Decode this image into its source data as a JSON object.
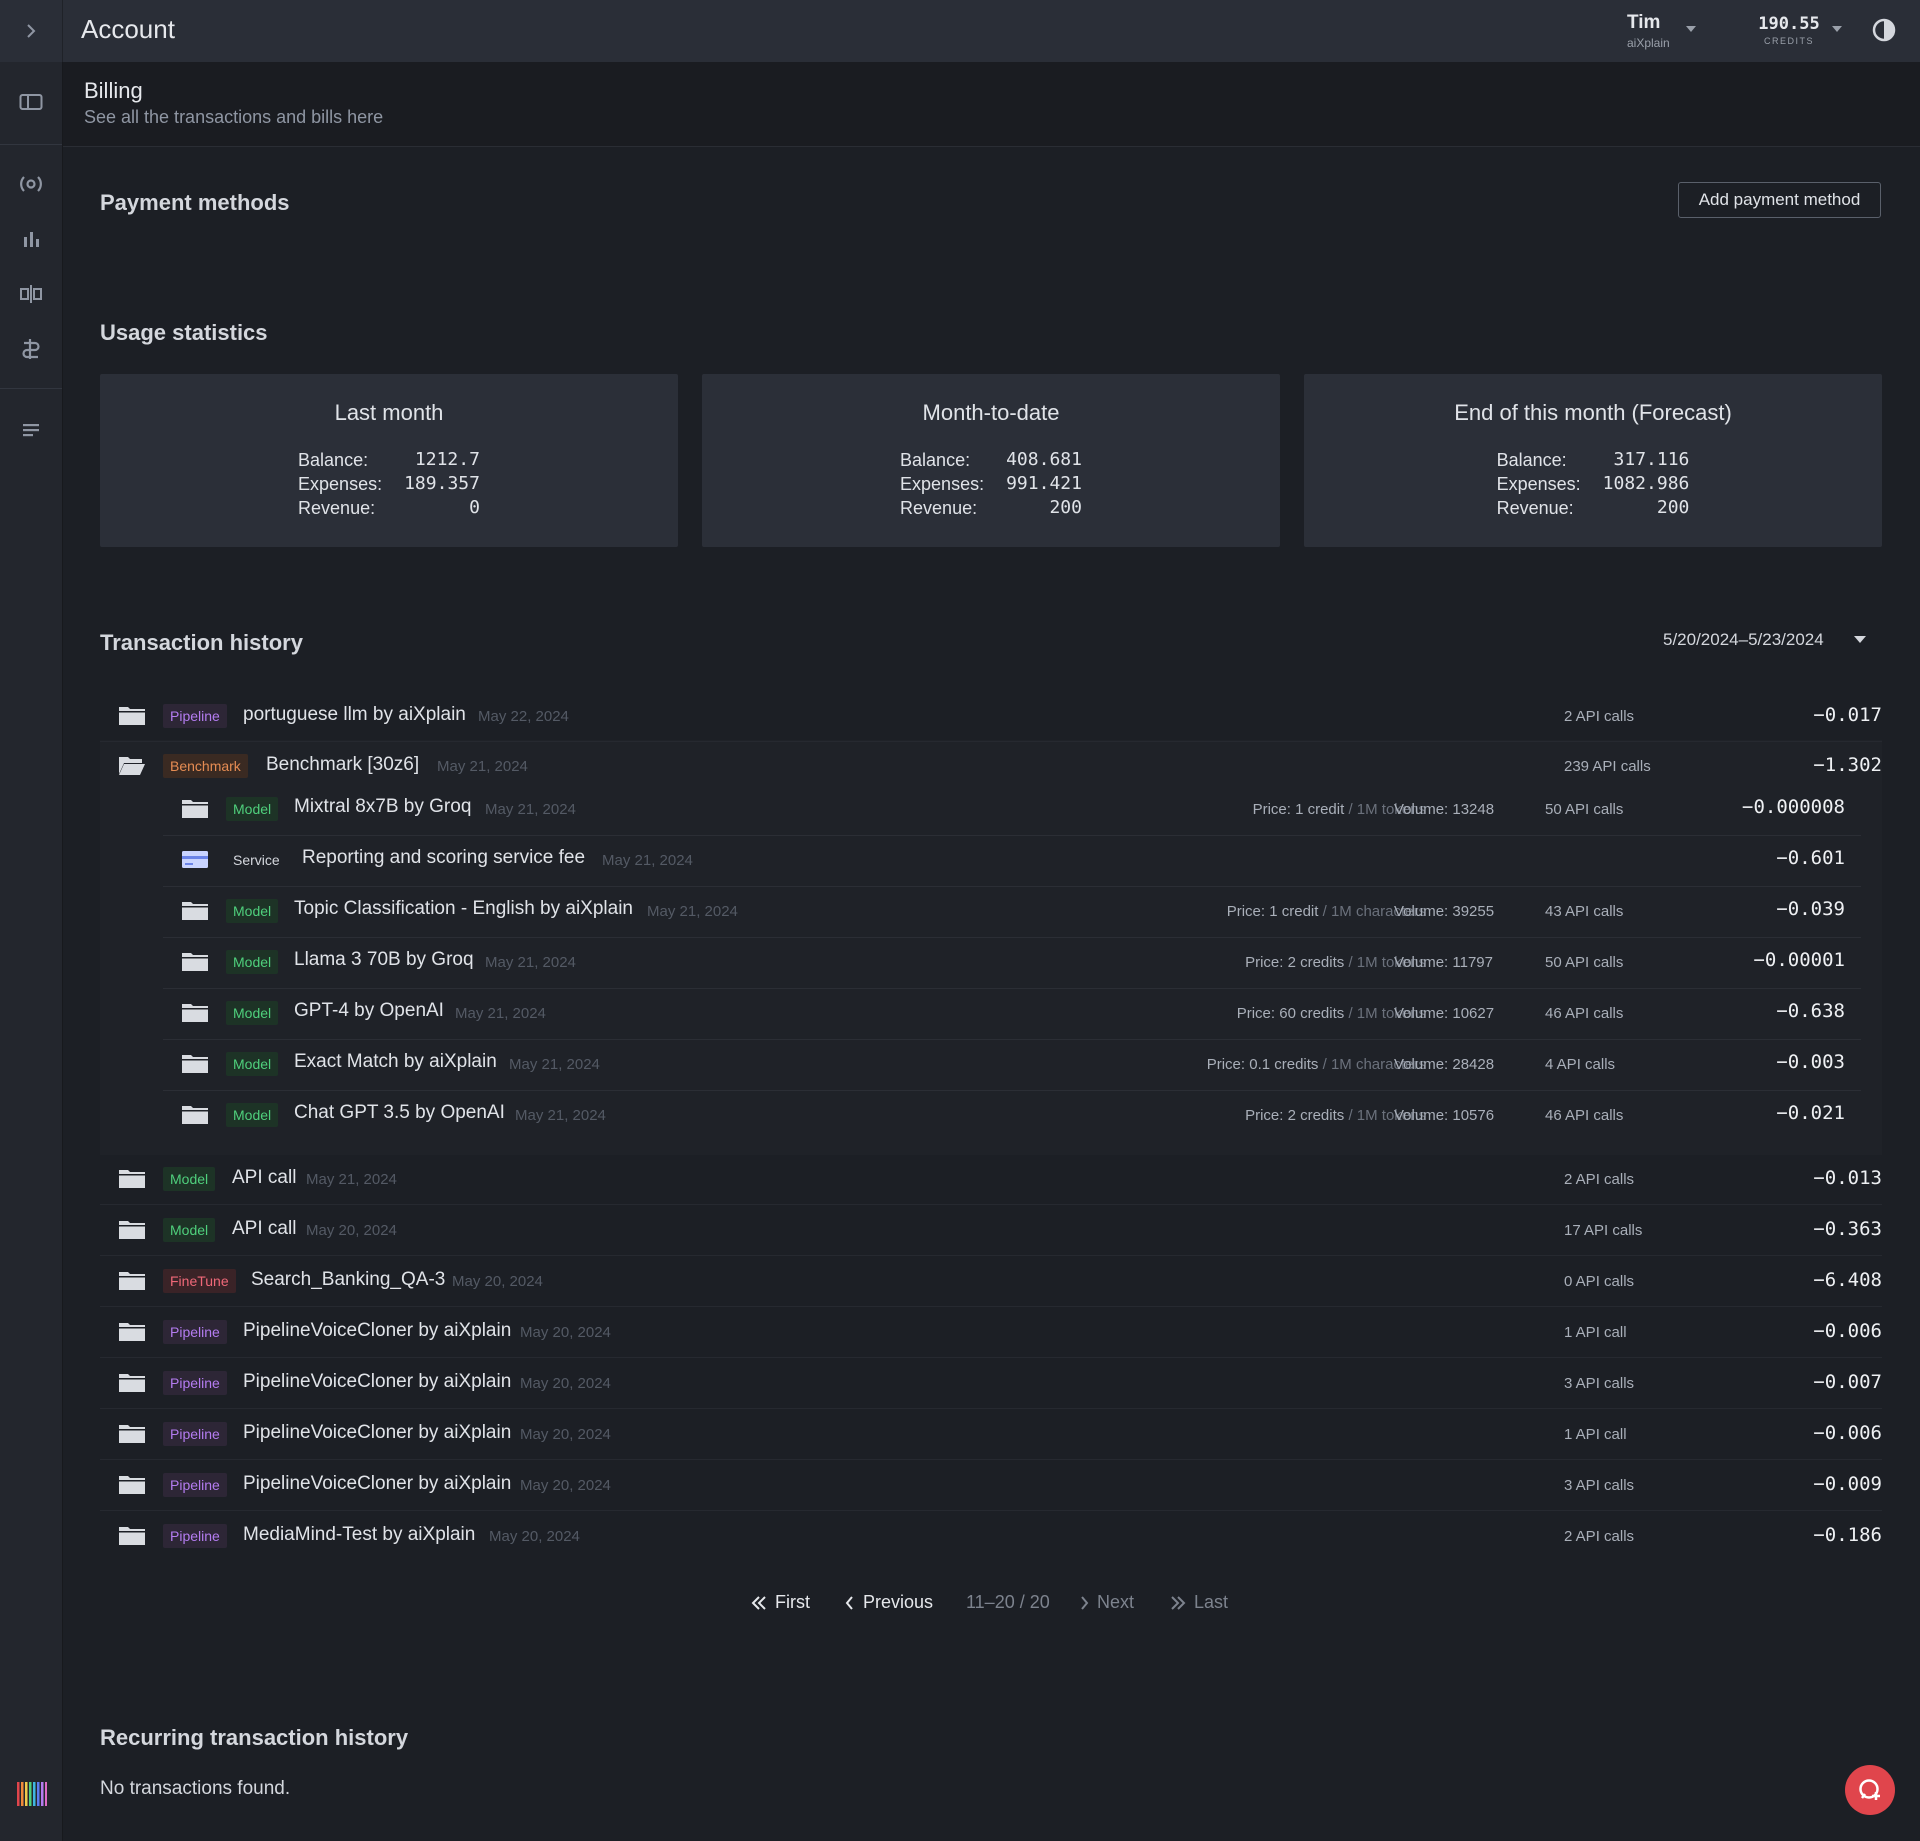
{
  "topbar": {
    "title": "Account",
    "user_name": "Tim",
    "user_org": "aiXplain",
    "credits_value": "190.55",
    "credits_label": "CREDITS"
  },
  "billing": {
    "heading": "Billing",
    "subtitle": "See all the transactions and bills here"
  },
  "payment": {
    "title": "Payment methods",
    "add_label": "Add payment method"
  },
  "usage": {
    "title": "Usage statistics",
    "cards": [
      {
        "title": "Last month",
        "balance_label": "Balance:",
        "balance": "1212.7",
        "expenses_label": "Expenses:",
        "expenses": "189.357",
        "revenue_label": "Revenue:",
        "revenue": "0"
      },
      {
        "title": "Month-to-date",
        "balance_label": "Balance:",
        "balance": "408.681",
        "expenses_label": "Expenses:",
        "expenses": "991.421",
        "revenue_label": "Revenue:",
        "revenue": "200"
      },
      {
        "title": "End of this month (Forecast)",
        "balance_label": "Balance:",
        "balance": "317.116",
        "expenses_label": "Expenses:",
        "expenses": "1082.986",
        "revenue_label": "Revenue:",
        "revenue": "200"
      }
    ]
  },
  "transactions": {
    "title": "Transaction history",
    "date_range": "5/20/2024–5/23/2024",
    "price_label": "Price:",
    "volume_label": "Volume:",
    "rows": [
      {
        "badge": "Pipeline",
        "name": "portuguese llm by aiXplain",
        "date": "May 22, 2024",
        "calls": "2 API calls",
        "amount": "−0.017"
      },
      {
        "badge": "Benchmark",
        "name": "Benchmark [30z6]",
        "date": "May 21, 2024",
        "calls": "239 API calls",
        "amount": "−1.302"
      },
      {
        "badge": "Model",
        "name": "API call",
        "date": "May 21, 2024",
        "calls": "2 API calls",
        "amount": "−0.013"
      },
      {
        "badge": "Model",
        "name": "API call",
        "date": "May 20, 2024",
        "calls": "17 API calls",
        "amount": "−0.363"
      },
      {
        "badge": "FineTune",
        "name": "Search_Banking_QA-3",
        "date": "May 20, 2024",
        "calls": "0 API calls",
        "amount": "−6.408"
      },
      {
        "badge": "Pipeline",
        "name": "PipelineVoiceCloner by aiXplain",
        "date": "May 20, 2024",
        "calls": "1 API call",
        "amount": "−0.006"
      },
      {
        "badge": "Pipeline",
        "name": "PipelineVoiceCloner by aiXplain",
        "date": "May 20, 2024",
        "calls": "3 API calls",
        "amount": "−0.007"
      },
      {
        "badge": "Pipeline",
        "name": "PipelineVoiceCloner by aiXplain",
        "date": "May 20, 2024",
        "calls": "1 API call",
        "amount": "−0.006"
      },
      {
        "badge": "Pipeline",
        "name": "PipelineVoiceCloner by aiXplain",
        "date": "May 20, 2024",
        "calls": "3 API calls",
        "amount": "−0.009"
      },
      {
        "badge": "Pipeline",
        "name": "MediaMind-Test by aiXplain",
        "date": "May 20, 2024",
        "calls": "2 API calls",
        "amount": "−0.186"
      }
    ],
    "children": [
      {
        "badge": "Model",
        "name": "Mixtral 8x7B by Groq",
        "date": "May 21, 2024",
        "price": "1 credit",
        "unit": "1M tokens",
        "volume": "13248",
        "calls": "50 API calls",
        "amount": "−0.000008"
      },
      {
        "badge": "Service",
        "name": "Reporting and scoring service fee",
        "date": "May 21, 2024",
        "price": "",
        "unit": "",
        "volume": "",
        "calls": "",
        "amount": "−0.601"
      },
      {
        "badge": "Model",
        "name": "Topic Classification - English by aiXplain",
        "date": "May 21, 2024",
        "price": "1 credit",
        "unit": "1M characters",
        "volume": "39255",
        "calls": "43 API calls",
        "amount": "−0.039"
      },
      {
        "badge": "Model",
        "name": "Llama 3 70B by Groq",
        "date": "May 21, 2024",
        "price": "2 credits",
        "unit": "1M tokens",
        "volume": "11797",
        "calls": "50 API calls",
        "amount": "−0.00001"
      },
      {
        "badge": "Model",
        "name": "GPT-4 by OpenAI",
        "date": "May 21, 2024",
        "price": "60 credits",
        "unit": "1M tokens",
        "volume": "10627",
        "calls": "46 API calls",
        "amount": "−0.638"
      },
      {
        "badge": "Model",
        "name": "Exact Match by aiXplain",
        "date": "May 21, 2024",
        "price": "0.1 credits",
        "unit": "1M characters",
        "volume": "28428",
        "calls": "4 API calls",
        "amount": "−0.003"
      },
      {
        "badge": "Model",
        "name": "Chat GPT 3.5 by OpenAI",
        "date": "May 21, 2024",
        "price": "2 credits",
        "unit": "1M tokens",
        "volume": "10576",
        "calls": "46 API calls",
        "amount": "−0.021"
      }
    ]
  },
  "pagination": {
    "first": "First",
    "previous": "Previous",
    "range": "11–20 / 20",
    "next": "Next",
    "last": "Last"
  },
  "recurring": {
    "title": "Recurring transaction history",
    "empty": "No transactions found."
  }
}
